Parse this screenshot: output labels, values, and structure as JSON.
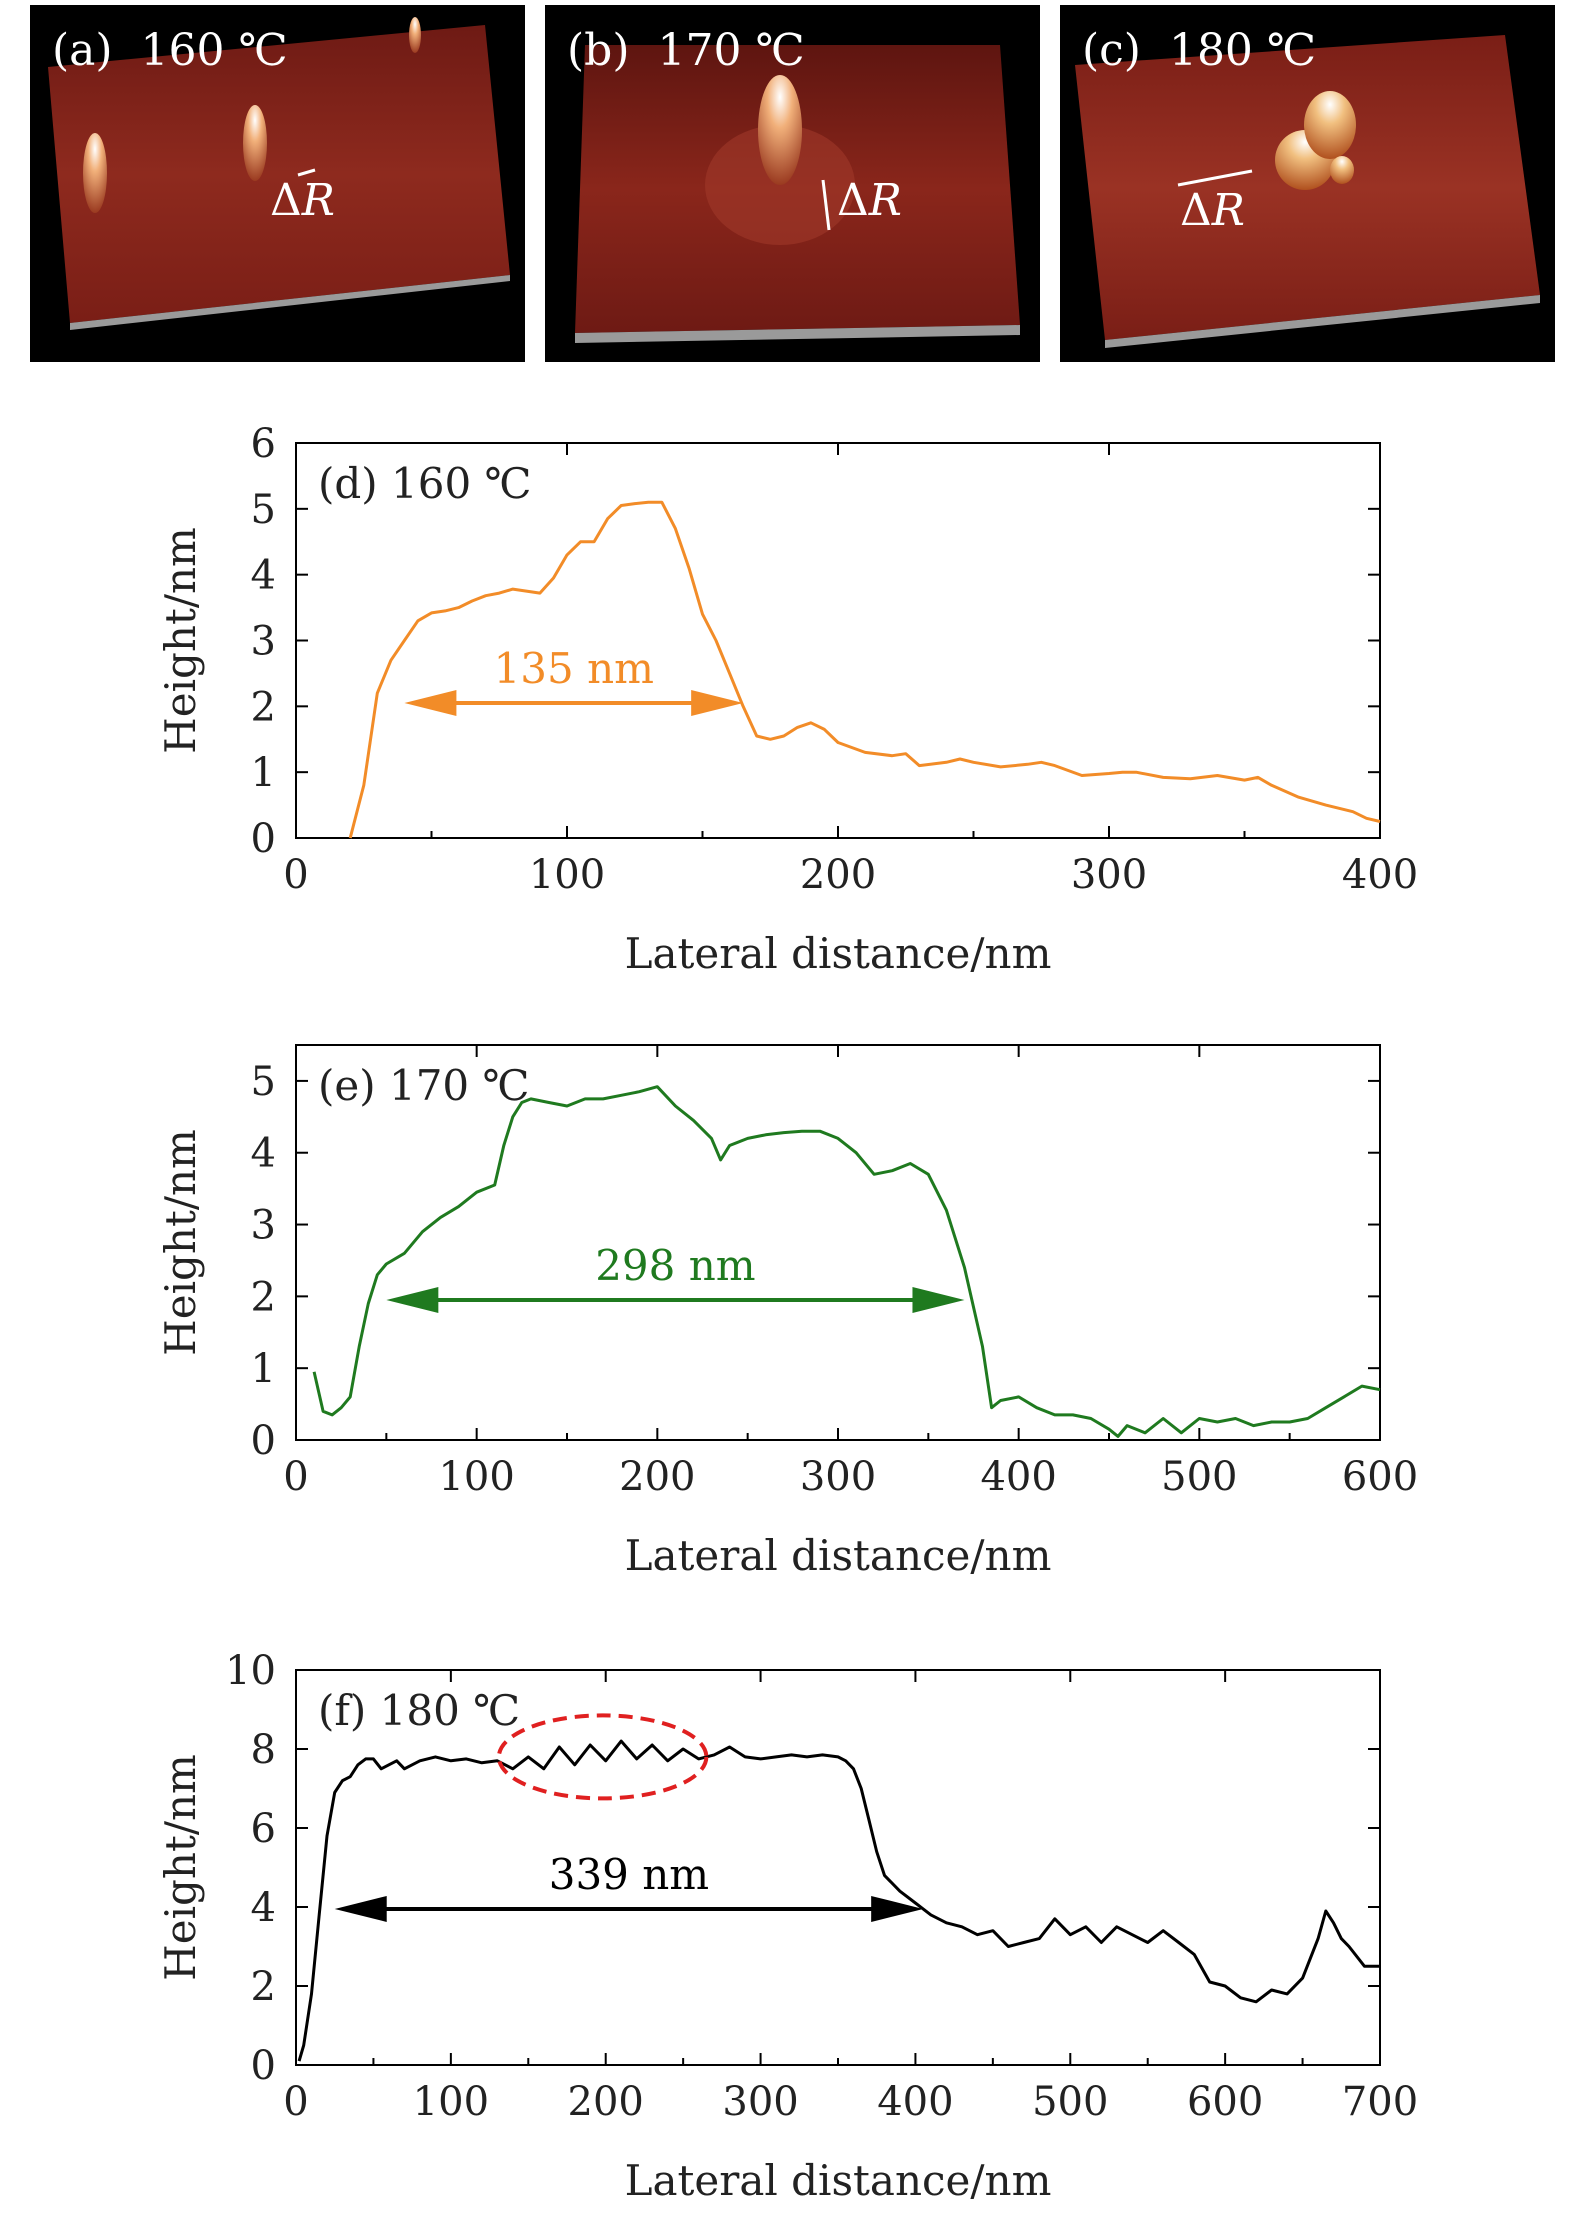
{
  "afm_panels": [
    {
      "label": "(a)  160 ℃",
      "annotation_symbol": "Δ",
      "annotation_var": "R"
    },
    {
      "label": "(b)  170 ℃",
      "annotation_symbol": "Δ",
      "annotation_var": "R"
    },
    {
      "label": "(c)  180 ℃",
      "annotation_symbol": "Δ",
      "annotation_var": "R"
    }
  ],
  "colors": {
    "panel_d": "#f28c28",
    "panel_e": "#1f7a1f",
    "panel_f": "#000000",
    "highlight_ellipse": "#e02020",
    "surface": "#8a1d16",
    "substrate": "#9a9a9a"
  },
  "chart_data": [
    {
      "type": "line",
      "panel_label": "(d) 160 ℃",
      "xlabel": "Lateral distance/nm",
      "ylabel": "Height/nm",
      "xlim": [
        0,
        400
      ],
      "ylim": [
        0,
        6
      ],
      "xticks": [
        0,
        100,
        200,
        300,
        400
      ],
      "yticks": [
        0,
        1,
        2,
        3,
        4,
        5,
        6
      ],
      "series": [
        {
          "name": "160 ℃",
          "x": [
            20,
            25,
            30,
            35,
            40,
            45,
            50,
            55,
            60,
            65,
            70,
            75,
            80,
            85,
            90,
            95,
            100,
            105,
            110,
            115,
            120,
            125,
            130,
            135,
            140,
            145,
            150,
            155,
            160,
            165,
            170,
            175,
            180,
            185,
            190,
            195,
            200,
            210,
            220,
            225,
            230,
            240,
            245,
            250,
            260,
            270,
            275,
            280,
            290,
            300,
            305,
            310,
            320,
            330,
            340,
            350,
            355,
            360,
            370,
            380,
            390,
            395,
            400
          ],
          "y": [
            0.0,
            0.8,
            2.2,
            2.7,
            3.0,
            3.3,
            3.42,
            3.45,
            3.5,
            3.6,
            3.68,
            3.72,
            3.78,
            3.75,
            3.72,
            3.95,
            4.3,
            4.5,
            4.5,
            4.85,
            5.05,
            5.08,
            5.1,
            5.1,
            4.7,
            4.1,
            3.4,
            3.0,
            2.5,
            2.0,
            1.55,
            1.5,
            1.55,
            1.68,
            1.75,
            1.65,
            1.45,
            1.3,
            1.25,
            1.28,
            1.1,
            1.15,
            1.2,
            1.15,
            1.08,
            1.12,
            1.15,
            1.1,
            0.95,
            0.98,
            1.0,
            1.0,
            0.92,
            0.9,
            0.95,
            0.88,
            0.92,
            0.8,
            0.62,
            0.5,
            0.4,
            0.3,
            0.25
          ]
        }
      ],
      "annotation": {
        "text": "135 nm",
        "x_start": 40,
        "x_end": 165,
        "y": 2.05
      }
    },
    {
      "type": "line",
      "panel_label": "(e) 170 ℃",
      "xlabel": "Lateral distance/nm",
      "ylabel": "Height/nm",
      "xlim": [
        0,
        600
      ],
      "ylim": [
        0,
        5.5
      ],
      "xticks": [
        0,
        100,
        200,
        300,
        400,
        500,
        600
      ],
      "yticks": [
        0,
        1,
        2,
        3,
        4,
        5
      ],
      "series": [
        {
          "name": "170 ℃",
          "x": [
            10,
            15,
            20,
            25,
            30,
            35,
            40,
            45,
            50,
            60,
            70,
            80,
            90,
            100,
            110,
            115,
            120,
            125,
            130,
            140,
            150,
            160,
            170,
            180,
            190,
            200,
            210,
            220,
            230,
            235,
            240,
            250,
            260,
            270,
            280,
            290,
            300,
            310,
            320,
            330,
            340,
            350,
            360,
            370,
            380,
            385,
            390,
            400,
            410,
            420,
            430,
            440,
            450,
            455,
            460,
            470,
            480,
            490,
            500,
            510,
            520,
            530,
            540,
            550,
            560,
            570,
            580,
            590,
            600
          ],
          "y": [
            0.95,
            0.4,
            0.35,
            0.45,
            0.6,
            1.3,
            1.9,
            2.3,
            2.45,
            2.6,
            2.9,
            3.1,
            3.25,
            3.45,
            3.55,
            4.1,
            4.5,
            4.7,
            4.75,
            4.7,
            4.65,
            4.75,
            4.75,
            4.8,
            4.85,
            4.92,
            4.65,
            4.45,
            4.2,
            3.9,
            4.1,
            4.2,
            4.25,
            4.28,
            4.3,
            4.3,
            4.2,
            4.0,
            3.7,
            3.75,
            3.85,
            3.7,
            3.2,
            2.4,
            1.3,
            0.45,
            0.55,
            0.6,
            0.45,
            0.35,
            0.35,
            0.3,
            0.15,
            0.05,
            0.2,
            0.1,
            0.3,
            0.1,
            0.3,
            0.25,
            0.3,
            0.2,
            0.25,
            0.25,
            0.3,
            0.45,
            0.6,
            0.75,
            0.7
          ]
        }
      ],
      "annotation": {
        "text": "298 nm",
        "x_start": 50,
        "x_end": 370,
        "y": 1.95
      }
    },
    {
      "type": "line",
      "panel_label": "(f) 180 ℃",
      "xlabel": "Lateral distance/nm",
      "ylabel": "Height/nm",
      "xlim": [
        0,
        700
      ],
      "ylim": [
        0,
        10
      ],
      "xticks": [
        0,
        100,
        200,
        300,
        400,
        500,
        600,
        700
      ],
      "yticks": [
        0,
        2,
        4,
        6,
        8,
        10
      ],
      "series": [
        {
          "name": "180 ℃",
          "x": [
            2,
            5,
            10,
            15,
            20,
            25,
            30,
            35,
            40,
            45,
            50,
            55,
            60,
            65,
            70,
            80,
            90,
            100,
            110,
            120,
            130,
            140,
            150,
            160,
            170,
            180,
            190,
            200,
            210,
            220,
            230,
            240,
            250,
            260,
            270,
            280,
            290,
            300,
            310,
            320,
            330,
            340,
            350,
            355,
            360,
            365,
            370,
            375,
            380,
            390,
            400,
            410,
            420,
            430,
            440,
            450,
            460,
            470,
            480,
            490,
            500,
            510,
            520,
            530,
            540,
            550,
            560,
            570,
            580,
            590,
            600,
            610,
            620,
            630,
            640,
            650,
            660,
            665,
            670,
            675,
            680,
            690,
            700
          ],
          "y": [
            0.1,
            0.5,
            1.8,
            3.8,
            5.8,
            6.9,
            7.2,
            7.3,
            7.6,
            7.75,
            7.75,
            7.5,
            7.6,
            7.7,
            7.5,
            7.7,
            7.8,
            7.7,
            7.75,
            7.65,
            7.7,
            7.5,
            7.8,
            7.5,
            8.05,
            7.6,
            8.1,
            7.7,
            8.2,
            7.75,
            8.1,
            7.7,
            8.0,
            7.75,
            7.85,
            8.05,
            7.8,
            7.75,
            7.8,
            7.85,
            7.8,
            7.85,
            7.8,
            7.7,
            7.5,
            7.0,
            6.2,
            5.4,
            4.8,
            4.4,
            4.1,
            3.8,
            3.6,
            3.5,
            3.3,
            3.4,
            3.0,
            3.1,
            3.2,
            3.7,
            3.3,
            3.5,
            3.1,
            3.5,
            3.3,
            3.1,
            3.4,
            3.1,
            2.8,
            2.1,
            2.0,
            1.7,
            1.6,
            1.9,
            1.8,
            2.2,
            3.2,
            3.9,
            3.6,
            3.2,
            3.0,
            2.5,
            2.5
          ]
        }
      ],
      "annotation": {
        "text": "339 nm",
        "x_start": 25,
        "x_end": 405,
        "y": 3.95
      },
      "highlight": {
        "shape": "ellipse",
        "x_center": 198,
        "y_center": 7.8,
        "x_radius": 67,
        "y_radius": 1.05
      }
    }
  ]
}
